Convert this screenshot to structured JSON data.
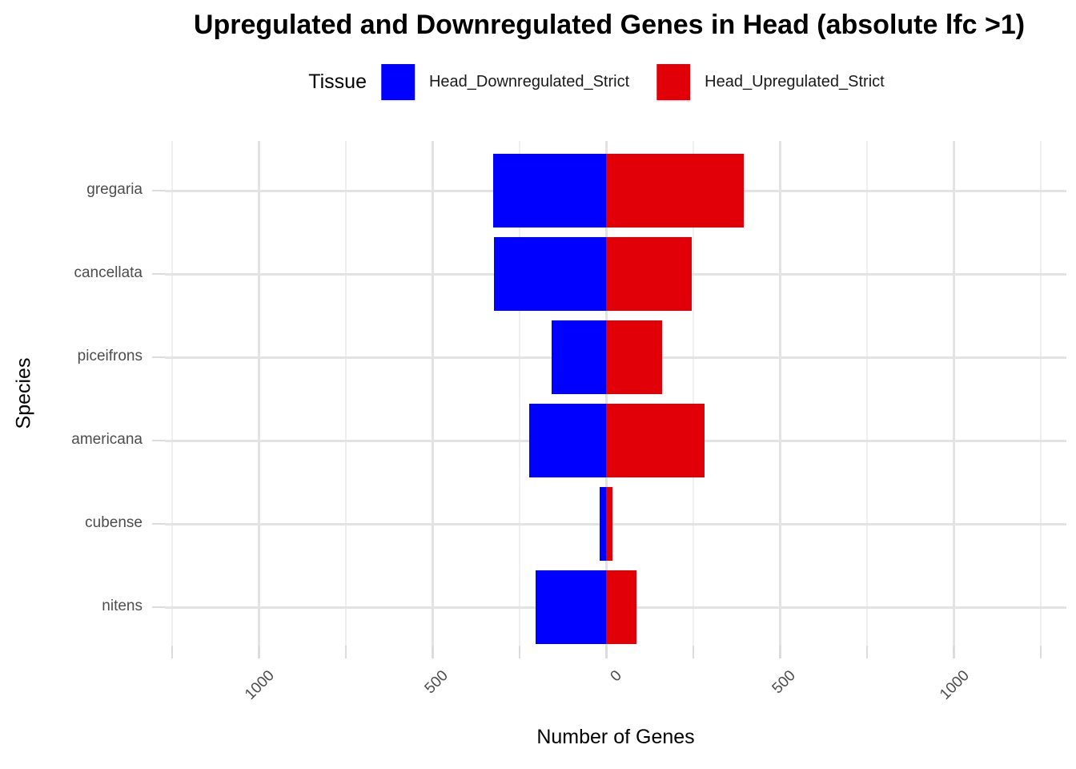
{
  "title": "Upregulated and Downregulated Genes in Head (absolute lfc >1)",
  "legend": {
    "title": "Tissue",
    "items": [
      {
        "label": "Head_Downregulated_Strict",
        "color": "#0000FF"
      },
      {
        "label": "Head_Upregulated_Strict",
        "color": "#E20008"
      }
    ]
  },
  "chart_data": {
    "type": "bar",
    "orientation": "horizontal-diverging",
    "title": "Upregulated and Downregulated Genes in Head (absolute lfc >1)",
    "xlabel": "Number of Genes",
    "ylabel": "Species",
    "categories": [
      "gregaria",
      "cancellata",
      "piceifrons",
      "americana",
      "cubense",
      "nitens"
    ],
    "series": [
      {
        "name": "Head_Downregulated_Strict",
        "color": "#0000FF",
        "direction": "negative",
        "values": [
          326,
          323,
          157,
          222,
          19,
          203
        ]
      },
      {
        "name": "Head_Upregulated_Strict",
        "color": "#E20008",
        "direction": "positive",
        "values": [
          396,
          247,
          160,
          283,
          18,
          88
        ]
      }
    ],
    "x_axis": {
      "labeled_breaks": [
        -1000,
        -500,
        0,
        500,
        1000
      ],
      "labeled_break_texts": [
        "1000",
        "500",
        "0",
        "500",
        "1000"
      ],
      "all_breaks": [
        -1250,
        -1000,
        -750,
        -500,
        -250,
        0,
        250,
        500,
        750,
        1000,
        1250
      ],
      "xlim": [
        -1300,
        1325
      ],
      "grid": true
    },
    "legend_position": "top",
    "colors": {
      "grid_major": "#e3e3e3",
      "grid_minor": "#efefef",
      "tick": "#dcdcdc",
      "tick_text": "#4d4d4d",
      "axis_title_text": "#000000"
    }
  }
}
